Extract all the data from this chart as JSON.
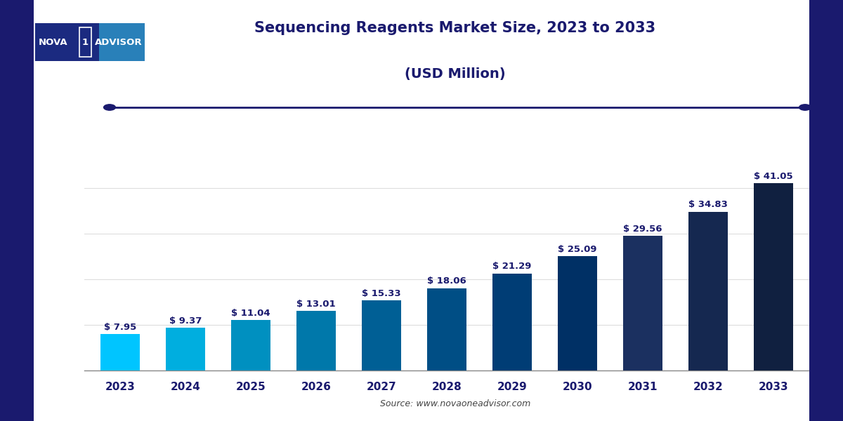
{
  "years": [
    "2023",
    "2024",
    "2025",
    "2026",
    "2027",
    "2028",
    "2029",
    "2030",
    "2031",
    "2032",
    "2033"
  ],
  "values": [
    7.95,
    9.37,
    11.04,
    13.01,
    15.33,
    18.06,
    21.29,
    25.09,
    29.56,
    34.83,
    41.05
  ],
  "bar_colors": [
    "#00C5FF",
    "#00AEDF",
    "#0090C0",
    "#0078AA",
    "#005F95",
    "#004E85",
    "#003D75",
    "#003065",
    "#1B3060",
    "#152850",
    "#102040"
  ],
  "labels": [
    "$ 7.95",
    "$ 9.37",
    "$ 11.04",
    "$ 13.01",
    "$ 15.33",
    "$ 18.06",
    "$ 21.29",
    "$ 25.09",
    "$ 29.56",
    "$ 34.83",
    "$ 41.05"
  ],
  "title_line1": "Sequencing Reagents Market Size, 2023 to 2033",
  "title_line2": "(USD Million)",
  "source_text": "Source: www.novaoneadvisor.com",
  "title_color": "#1a1a6e",
  "label_color": "#1a1a6e",
  "tick_color": "#1a1a6e",
  "background_color": "#ffffff",
  "plot_bg_color": "#ffffff",
  "ylim": [
    0,
    48
  ],
  "bar_width": 0.6,
  "grid_color": "#dddddd",
  "border_color": "#1a1a6e",
  "deco_line_color": "#1a1a6e",
  "logo_left_color": "#1B2A80",
  "logo_right_color": "#2980B9"
}
